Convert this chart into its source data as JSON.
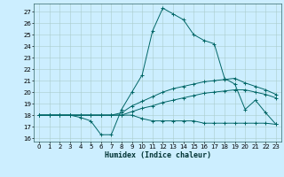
{
  "xlabel": "Humidex (Indice chaleur)",
  "bg_color": "#cceeff",
  "grid_color": "#aacccc",
  "line_color": "#006666",
  "xlim": [
    -0.5,
    23.5
  ],
  "ylim": [
    15.7,
    27.7
  ],
  "yticks": [
    16,
    17,
    18,
    19,
    20,
    21,
    22,
    23,
    24,
    25,
    26,
    27
  ],
  "xticks": [
    0,
    1,
    2,
    3,
    4,
    5,
    6,
    7,
    8,
    9,
    10,
    11,
    12,
    13,
    14,
    15,
    16,
    17,
    18,
    19,
    20,
    21,
    22,
    23
  ],
  "series": [
    {
      "x": [
        0,
        1,
        2,
        3,
        4,
        5,
        6,
        7,
        8,
        9,
        10,
        11,
        12,
        13,
        14,
        15,
        16,
        17,
        18,
        19,
        20,
        21,
        22,
        23
      ],
      "y": [
        18,
        18,
        18,
        18,
        17.8,
        17.5,
        16.3,
        16.3,
        18.5,
        20.0,
        21.5,
        25.3,
        27.3,
        26.8,
        26.3,
        25.0,
        24.5,
        24.2,
        21.2,
        20.7,
        18.5,
        19.3,
        18.2,
        17.2
      ]
    },
    {
      "x": [
        0,
        1,
        2,
        3,
        4,
        5,
        6,
        7,
        8,
        9,
        10,
        11,
        12,
        13,
        14,
        15,
        16,
        17,
        18,
        19,
        20,
        21,
        22,
        23
      ],
      "y": [
        18,
        18,
        18,
        18,
        18,
        18,
        18,
        18,
        18.2,
        18.8,
        19.2,
        19.6,
        20.0,
        20.3,
        20.5,
        20.7,
        20.9,
        21.0,
        21.1,
        21.2,
        20.8,
        20.5,
        20.2,
        19.8
      ]
    },
    {
      "x": [
        0,
        1,
        2,
        3,
        4,
        5,
        6,
        7,
        8,
        9,
        10,
        11,
        12,
        13,
        14,
        15,
        16,
        17,
        18,
        19,
        20,
        21,
        22,
        23
      ],
      "y": [
        18,
        18,
        18,
        18,
        18,
        18,
        18,
        18,
        18,
        18.3,
        18.6,
        18.8,
        19.1,
        19.3,
        19.5,
        19.7,
        19.9,
        20.0,
        20.1,
        20.2,
        20.2,
        20.0,
        19.8,
        19.5
      ]
    },
    {
      "x": [
        0,
        1,
        2,
        3,
        4,
        5,
        6,
        7,
        8,
        9,
        10,
        11,
        12,
        13,
        14,
        15,
        16,
        17,
        18,
        19,
        20,
        21,
        22,
        23
      ],
      "y": [
        18,
        18,
        18,
        18,
        18,
        18,
        18,
        18,
        18,
        18,
        17.7,
        17.5,
        17.5,
        17.5,
        17.5,
        17.5,
        17.3,
        17.3,
        17.3,
        17.3,
        17.3,
        17.3,
        17.3,
        17.2
      ]
    }
  ]
}
